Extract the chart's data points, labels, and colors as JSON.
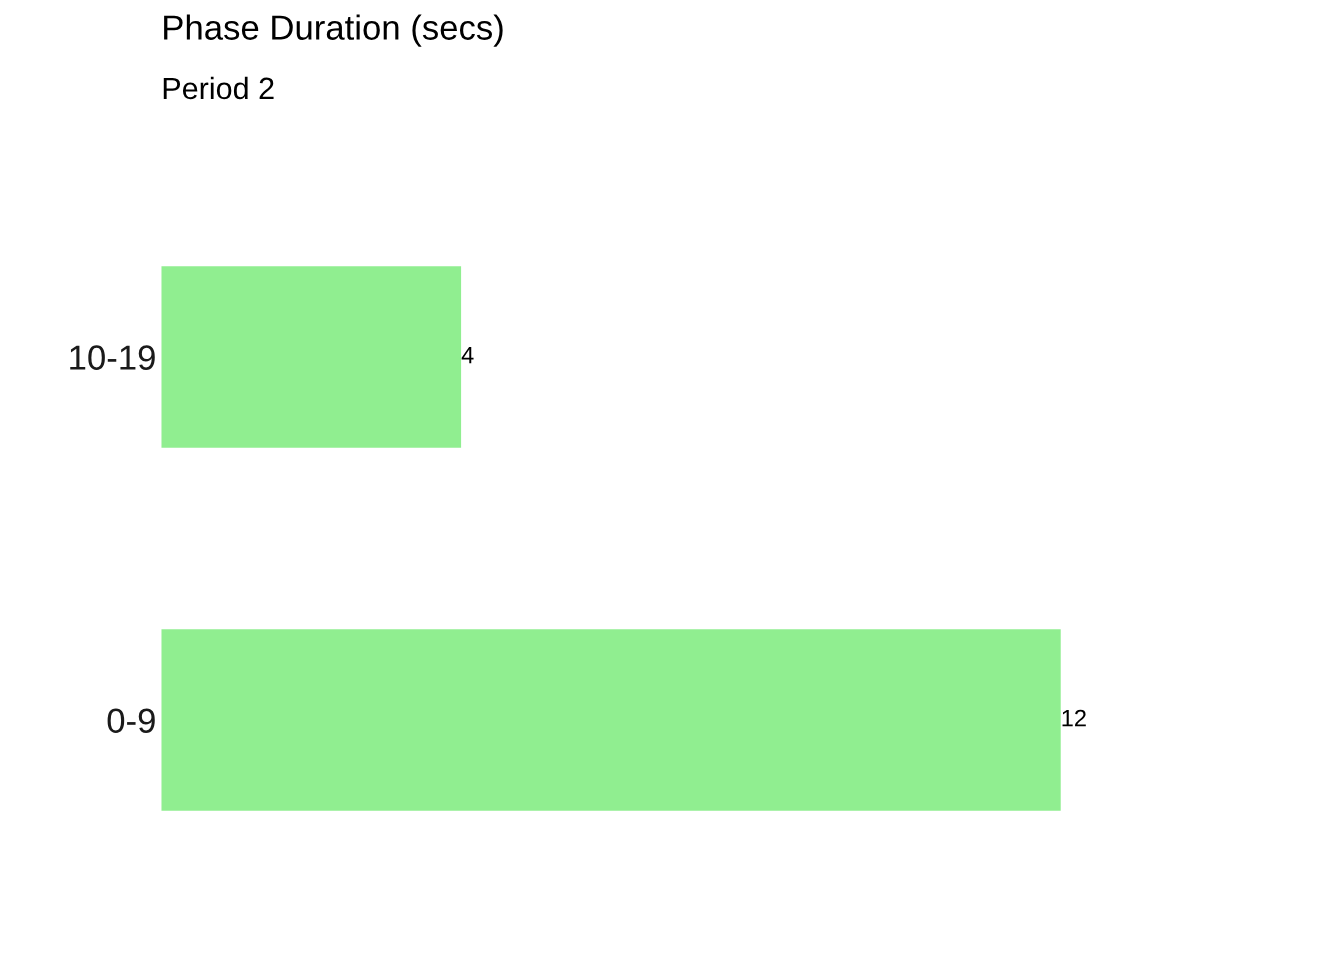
{
  "chart_data": {
    "type": "bar",
    "orientation": "horizontal",
    "title": "Phase Duration (secs)",
    "subtitle": "Period 2",
    "categories": [
      "10-19",
      "0-9"
    ],
    "values": [
      4,
      12
    ],
    "color": "#90ee90",
    "data_labels": true,
    "grid": false,
    "tick_labels": "y"
  }
}
